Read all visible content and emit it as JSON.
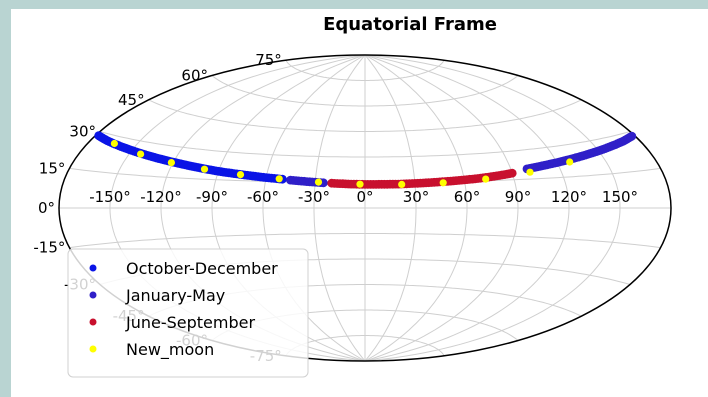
{
  "chart_data": {
    "type": "scatter",
    "projection": "aitoff",
    "title": "Equatorial Frame",
    "xlabel": "",
    "ylabel": "",
    "xlim": [
      -180,
      180
    ],
    "ylim": [
      -90,
      90
    ],
    "grid": true,
    "x_ticks": [
      "-150°",
      "-120°",
      "-90°",
      "-60°",
      "-30°",
      "0°",
      "30°",
      "60°",
      "90°",
      "120°",
      "150°"
    ],
    "y_ticks": [
      "-75°",
      "-60°",
      "-45°",
      "-30°",
      "-15°",
      "0°",
      "15°",
      "30°",
      "45°",
      "60°",
      "75°"
    ],
    "legend": {
      "position": "lower-left"
    },
    "series": [
      {
        "name": "October-December",
        "color": "#0a14e6",
        "marker": "dot",
        "points": [
          {
            "x": -178,
            "y": 28.5
          },
          {
            "x": -170,
            "y": 27.5
          },
          {
            "x": -160,
            "y": 26.5
          },
          {
            "x": -150,
            "y": 25.5
          },
          {
            "x": -140,
            "y": 24.5
          },
          {
            "x": -130,
            "y": 23.5
          },
          {
            "x": -120,
            "y": 22.5
          },
          {
            "x": -110,
            "y": 21.5
          },
          {
            "x": -100,
            "y": 20.5
          },
          {
            "x": -90,
            "y": 19.5
          },
          {
            "x": -80,
            "y": 18.7
          },
          {
            "x": -70,
            "y": 17.9
          },
          {
            "x": -60,
            "y": 17.1
          },
          {
            "x": -50,
            "y": 16.4
          }
        ]
      },
      {
        "name": "January-May",
        "color": "#2f1fc8",
        "marker": "dot",
        "points": [
          {
            "x": -45,
            "y": 16.0
          },
          {
            "x": -35,
            "y": 15.3
          },
          {
            "x": -25,
            "y": 14.7
          },
          {
            "x": 100,
            "y": 20.3
          },
          {
            "x": 110,
            "y": 21.3
          },
          {
            "x": 120,
            "y": 22.3
          },
          {
            "x": 130,
            "y": 23.3
          },
          {
            "x": 140,
            "y": 24.3
          },
          {
            "x": 150,
            "y": 25.3
          },
          {
            "x": 160,
            "y": 26.3
          },
          {
            "x": 170,
            "y": 27.3
          },
          {
            "x": 178,
            "y": 28.3
          }
        ]
      },
      {
        "name": "June-September",
        "color": "#c8102e",
        "marker": "dot",
        "points": [
          {
            "x": -20,
            "y": 14.5
          },
          {
            "x": -10,
            "y": 14.1
          },
          {
            "x": 0,
            "y": 13.9
          },
          {
            "x": 10,
            "y": 13.9
          },
          {
            "x": 20,
            "y": 14.0
          },
          {
            "x": 30,
            "y": 14.3
          },
          {
            "x": 40,
            "y": 14.7
          },
          {
            "x": 50,
            "y": 15.2
          },
          {
            "x": 60,
            "y": 15.8
          },
          {
            "x": 70,
            "y": 16.5
          },
          {
            "x": 80,
            "y": 17.4
          },
          {
            "x": 90,
            "y": 18.5
          }
        ]
      },
      {
        "name": "New_moon",
        "color": "#ffff00",
        "marker": "dot",
        "points": [
          {
            "x": -164,
            "y": 27.0
          },
          {
            "x": -143,
            "y": 24.5
          },
          {
            "x": -121,
            "y": 22.2
          },
          {
            "x": -99,
            "y": 20.2
          },
          {
            "x": -76,
            "y": 18.3
          },
          {
            "x": -52,
            "y": 16.6
          },
          {
            "x": -28,
            "y": 15.1
          },
          {
            "x": -3,
            "y": 14.0
          },
          {
            "x": 22,
            "y": 13.8
          },
          {
            "x": 47,
            "y": 14.4
          },
          {
            "x": 73,
            "y": 15.9
          },
          {
            "x": 101,
            "y": 18.5
          },
          {
            "x": 128,
            "y": 22.0
          }
        ]
      }
    ]
  }
}
